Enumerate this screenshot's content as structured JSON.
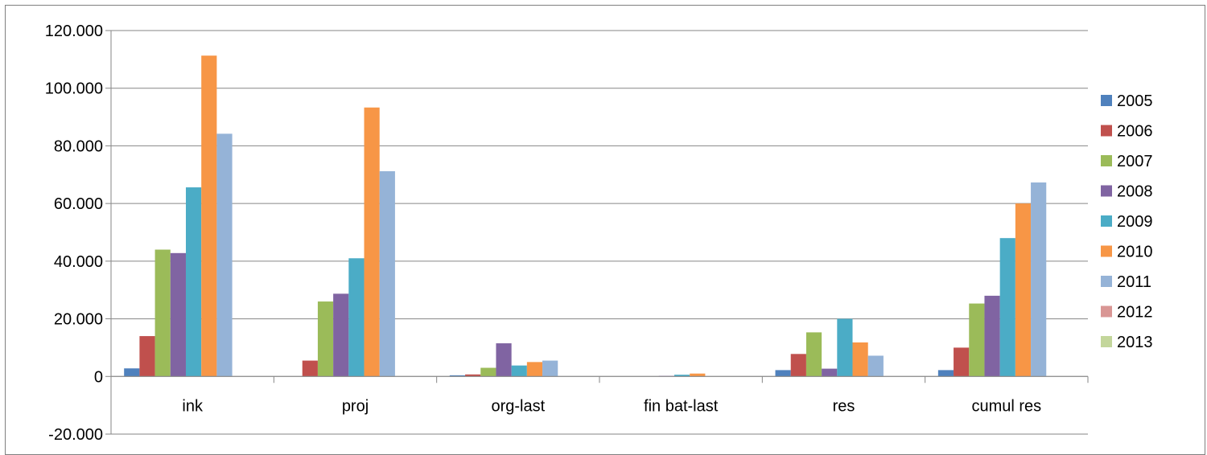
{
  "chart_data": {
    "type": "bar",
    "title": "",
    "xlabel": "",
    "ylabel": "",
    "ylim": [
      -20000,
      120000
    ],
    "y_ticks": [
      -20000,
      0,
      20000,
      40000,
      60000,
      80000,
      100000,
      120000
    ],
    "y_tick_labels": [
      "-20.000",
      "0",
      "20.000",
      "40.000",
      "60.000",
      "80.000",
      "100.000",
      "120.000"
    ],
    "grid": true,
    "legend_position": "right",
    "categories": [
      "ink",
      "proj",
      "org-last",
      "fin bat-last",
      "res",
      "cumul res"
    ],
    "series": [
      {
        "name": "2005",
        "color": "#4f81bd",
        "values": [
          2800,
          0,
          400,
          0,
          2200,
          2200
        ]
      },
      {
        "name": "2006",
        "color": "#c0504d",
        "values": [
          14000,
          5500,
          700,
          0,
          7800,
          10000
        ]
      },
      {
        "name": "2007",
        "color": "#9bbb59",
        "values": [
          44000,
          26000,
          3000,
          0,
          15300,
          25300
        ]
      },
      {
        "name": "2008",
        "color": "#8064a2",
        "values": [
          42800,
          28700,
          11500,
          200,
          2700,
          28000
        ]
      },
      {
        "name": "2009",
        "color": "#4bacc6",
        "values": [
          65600,
          41000,
          3800,
          600,
          20000,
          48000
        ]
      },
      {
        "name": "2010",
        "color": "#f79646",
        "values": [
          111300,
          93300,
          5000,
          1000,
          11800,
          60000
        ]
      },
      {
        "name": "2011",
        "color": "#95b3d7",
        "values": [
          84200,
          71200,
          5500,
          0,
          7200,
          67300
        ]
      },
      {
        "name": "2012",
        "color": "#d99694",
        "values": [
          0,
          0,
          0,
          0,
          0,
          0
        ]
      },
      {
        "name": "2013",
        "color": "#c3d69b",
        "values": [
          0,
          0,
          0,
          0,
          0,
          0
        ]
      }
    ]
  }
}
